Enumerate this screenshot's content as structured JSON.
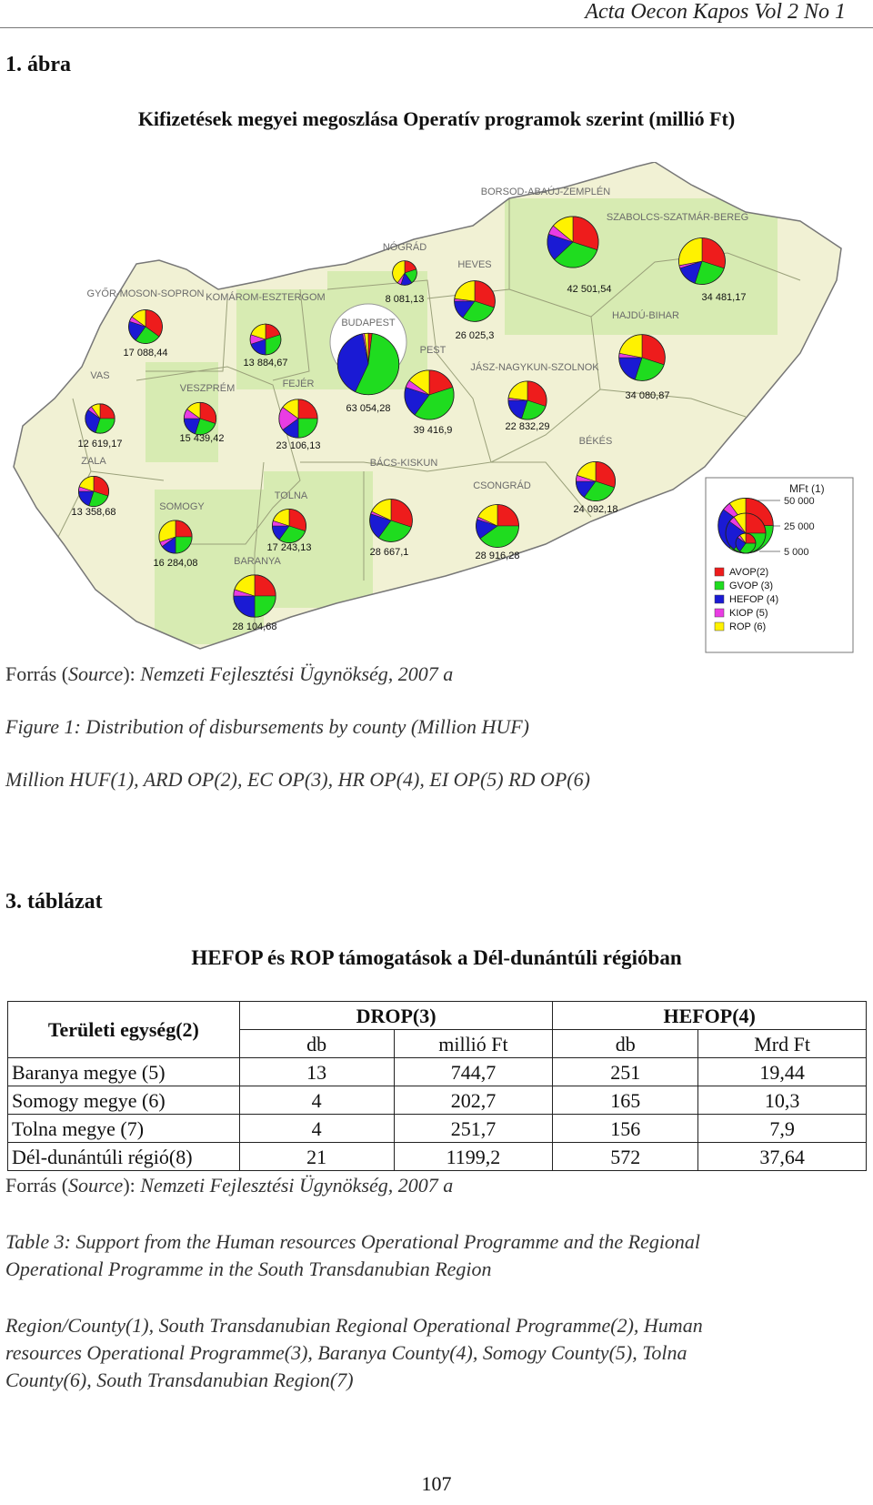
{
  "header": "Acta Oecon Kapos Vol 2 No 1",
  "figure": {
    "number": "1. ábra",
    "title": "Kifizetések megyei megoszlása Operatív programok szerint (millió Ft)"
  },
  "map": {
    "counties": [
      {
        "name": "BORSOD-ABAÚJ-ZEMPLÉN",
        "value": "42 501,54",
        "shares": [
          0.3,
          0.33,
          0.17,
          0.06,
          0.14
        ]
      },
      {
        "name": "SZABOLCS-SZATMÁR-BEREG",
        "value": "34 481,17",
        "shares": [
          0.3,
          0.25,
          0.15,
          0.02,
          0.28
        ]
      },
      {
        "name": "NÓGRÁD",
        "value": "8 081,13",
        "shares": [
          0.2,
          0.2,
          0.15,
          0.05,
          0.4
        ]
      },
      {
        "name": "HEVES",
        "value": "26 025,3",
        "shares": [
          0.3,
          0.3,
          0.15,
          0.02,
          0.23
        ]
      },
      {
        "name": "GYŐR-MOSON-SOPRON",
        "value": "17 088,44",
        "shares": [
          0.35,
          0.25,
          0.2,
          0.05,
          0.15
        ]
      },
      {
        "name": "KOMÁROM-ESZTERGOM",
        "value": "13 884,67",
        "shares": [
          0.2,
          0.3,
          0.2,
          0.1,
          0.2
        ]
      },
      {
        "name": "BUDAPEST",
        "value": "63 054,28",
        "shares": [
          0.02,
          0.55,
          0.4,
          0.01,
          0.02
        ]
      },
      {
        "name": "PEST",
        "value": "39 416,9",
        "shares": [
          0.2,
          0.4,
          0.2,
          0.05,
          0.15
        ]
      },
      {
        "name": "HAJDÚ-BIHAR",
        "value": "34 080,87",
        "shares": [
          0.3,
          0.25,
          0.2,
          0.03,
          0.22
        ]
      },
      {
        "name": "JÁSZ-NAGYKUN-SZOLNOK",
        "value": "22 832,29",
        "shares": [
          0.3,
          0.25,
          0.2,
          0.02,
          0.23
        ]
      },
      {
        "name": "VAS",
        "value": "12 619,17",
        "shares": [
          0.25,
          0.3,
          0.3,
          0.05,
          0.1
        ]
      },
      {
        "name": "VESZPRÉM",
        "value": "15 439,42",
        "shares": [
          0.3,
          0.25,
          0.2,
          0.1,
          0.15
        ]
      },
      {
        "name": "FEJÉR",
        "value": "23 106,13",
        "shares": [
          0.25,
          0.25,
          0.15,
          0.2,
          0.15
        ]
      },
      {
        "name": "ZALA",
        "value": "13 358,68",
        "shares": [
          0.3,
          0.25,
          0.2,
          0.05,
          0.2
        ]
      },
      {
        "name": "BÉKÉS",
        "value": "24 092,18",
        "shares": [
          0.3,
          0.3,
          0.15,
          0.05,
          0.2
        ]
      },
      {
        "name": "SOMOGY",
        "value": "16 284,08",
        "shares": [
          0.25,
          0.25,
          0.15,
          0.05,
          0.3
        ]
      },
      {
        "name": "TOLNA",
        "value": "17 243,13",
        "shares": [
          0.3,
          0.3,
          0.15,
          0.05,
          0.2
        ]
      },
      {
        "name": "BÁCS-KISKUN",
        "value": "28 667,1",
        "shares": [
          0.3,
          0.3,
          0.2,
          0.02,
          0.18
        ]
      },
      {
        "name": "CSONGRÁD",
        "value": "28 916,28",
        "shares": [
          0.25,
          0.4,
          0.15,
          0.02,
          0.18
        ]
      },
      {
        "name": "BARANYA",
        "value": "28 104,68",
        "shares": [
          0.25,
          0.25,
          0.25,
          0.05,
          0.2
        ]
      }
    ],
    "legend": {
      "title": "MFt (1)",
      "sizes": [
        "50 000",
        "25 000",
        "5 000"
      ],
      "items": [
        {
          "label": "AVOP(2)",
          "color": "#ee1c1c"
        },
        {
          "label": "GVOP (3)",
          "color": "#1fdc1f"
        },
        {
          "label": "HEFOP (4)",
          "color": "#1a1ad4"
        },
        {
          "label": "KIOP (5)",
          "color": "#e93ce3"
        },
        {
          "label": "ROP (6)",
          "color": "#fff200"
        }
      ]
    }
  },
  "figure_source": {
    "prefix": "Forrás (",
    "source_word": "Source",
    "suffix": "): ",
    "text": "Nemzeti Fejlesztési Ügynökség, 2007 a"
  },
  "figure_caption": {
    "label": "Figure 1",
    "text": ": Distribution of disbursements by county (Million HUF)"
  },
  "figure_legend_note": "Million HUF(1), ARD OP(2), EC OP(3), HR OP(4), EI OP(5) RD OP(6)",
  "table": {
    "number": "3. táblázat",
    "title": "HEFOP és ROP támogatások a Dél-dunántúli régióban",
    "col_unit": "Területi egység(2)",
    "group1": "DROP(3)",
    "group2": "HEFOP(4)",
    "sub": [
      "db",
      "millió Ft",
      "db",
      "Mrd Ft"
    ],
    "rows": [
      [
        "Baranya megye (5)",
        "13",
        "744,7",
        "251",
        "19,44"
      ],
      [
        "Somogy megye (6)",
        "4",
        "202,7",
        "165",
        "10,3"
      ],
      [
        "Tolna megye (7)",
        "4",
        "251,7",
        "156",
        "7,9"
      ],
      [
        "Dél-dunántúli régió(8)",
        "21",
        "1199,2",
        "572",
        "37,64"
      ]
    ],
    "source": {
      "prefix": "Forrás (",
      "source_word": "Source",
      "suffix": "): ",
      "text": "Nemzeti Fejlesztési Ügynökség, 2007 a"
    }
  },
  "table_caption": {
    "line1": "Table 3: Support from the Human resources Operational Programme and the Regional",
    "line2": "Operational Programme in the South Transdanubian Region"
  },
  "table_note": {
    "line1": "Region/County(1), South Transdanubian Regional Operational Programme(2), Human",
    "line2": "resources Operational Programme(3), Baranya County(4), Somogy County(5), Tolna",
    "line3": "County(6), South Transdanubian Region(7)"
  },
  "page_number": "107"
}
